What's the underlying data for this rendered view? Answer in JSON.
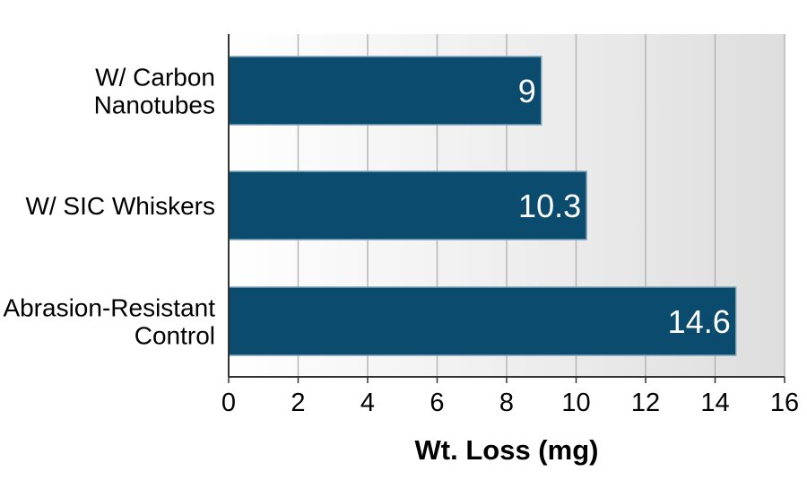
{
  "chart_data": {
    "type": "bar",
    "orientation": "horizontal",
    "categories": [
      [
        "W/ Carbon",
        "Nanotubes"
      ],
      [
        "W/ SIC Whiskers"
      ],
      [
        "Abrasion-Resistant",
        "Control"
      ]
    ],
    "values": [
      9,
      10.3,
      14.6
    ],
    "value_labels": [
      "9",
      "10.3",
      "14.6"
    ],
    "xlabel": "Wt. Loss (mg)",
    "ylabel": "",
    "title": "",
    "xlim": [
      0,
      16
    ],
    "xticks": [
      0,
      2,
      4,
      6,
      8,
      10,
      12,
      14,
      16
    ],
    "grid": "vertical",
    "legend": "none"
  },
  "colors": {
    "bar": "#0b4c6e",
    "bar_edge": "#7fa2b8",
    "grid": "#b5b5b5",
    "axis": "#333333",
    "text": "#000000",
    "value_text": "#ffffff",
    "plot_bg_left": "#ffffff",
    "plot_bg_right": "#dedede"
  }
}
